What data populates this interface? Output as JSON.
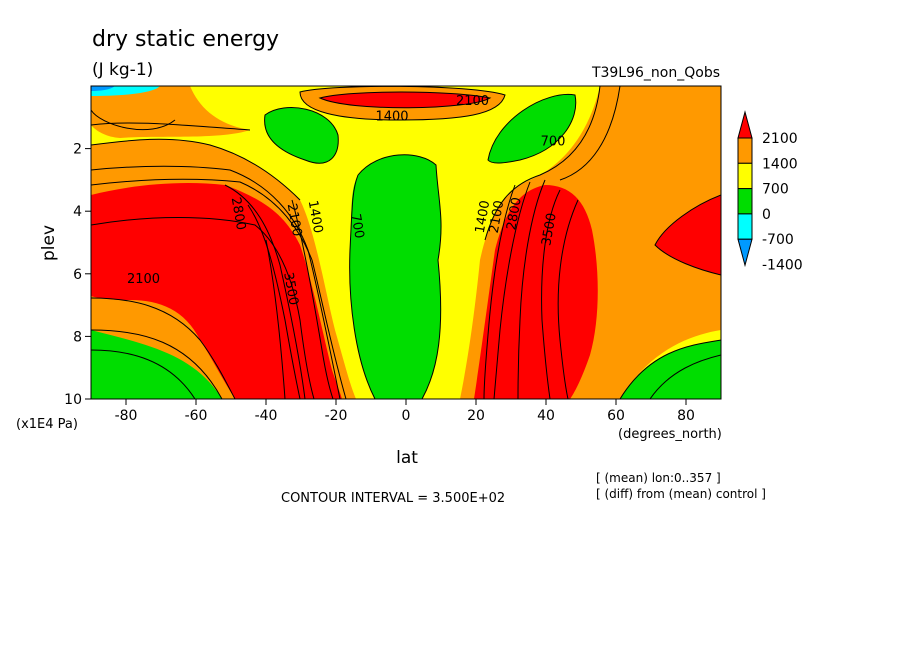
{
  "chart_data": {
    "type": "heatmap",
    "subtype": "filled-contour",
    "title": "dry static energy",
    "units": "(J kg-1)",
    "run_label": "T39L96_non_Qobs",
    "xlabel": "lat",
    "x_units": "(degrees_north)",
    "ylabel": "plev",
    "y_units": "(x1E4 Pa)",
    "xlim": [
      -90,
      90
    ],
    "ylim": [
      10,
      0
    ],
    "x_ticks": [
      "-80",
      "-60",
      "-40",
      "-20",
      "0",
      "20",
      "40",
      "60",
      "80"
    ],
    "y_ticks": [
      "2",
      "4",
      "6",
      "8",
      "10"
    ],
    "contour_interval_text": "CONTOUR INTERVAL = 3.500E+02",
    "notes": [
      "[ (mean) lon:0..357 ]",
      "[ (diff) from (mean) control ]"
    ],
    "colorbar": {
      "labels": [
        "2100",
        "1400",
        "700",
        "0",
        "-700",
        "-1400"
      ],
      "colors": [
        "#ff0000",
        "#ff9900",
        "#ffff00",
        "#00dd00",
        "#00ffff",
        "#0099ff"
      ]
    },
    "contour_labels": [
      {
        "text": "2100",
        "lat": 19,
        "plev": 0.6
      },
      {
        "text": "1400",
        "lat": -4,
        "plev": 1.1
      },
      {
        "text": "700",
        "lat": 42,
        "plev": 1.9
      },
      {
        "text": "2800",
        "lat": -49,
        "plev": 4.1
      },
      {
        "text": "2100",
        "lat": -33,
        "plev": 4.3
      },
      {
        "text": "1400",
        "lat": -27,
        "plev": 4.2
      },
      {
        "text": "700",
        "lat": -15,
        "plev": 4.5
      },
      {
        "text": "1400",
        "lat": 23,
        "plev": 4.2
      },
      {
        "text": "2100",
        "lat": 27,
        "plev": 4.2
      },
      {
        "text": "2800",
        "lat": 32,
        "plev": 4.1
      },
      {
        "text": "3500",
        "lat": 42,
        "plev": 4.6
      },
      {
        "text": "3500",
        "lat": -34,
        "plev": 6.5
      },
      {
        "text": "2100",
        "lat": -75,
        "plev": 6.3
      }
    ]
  }
}
